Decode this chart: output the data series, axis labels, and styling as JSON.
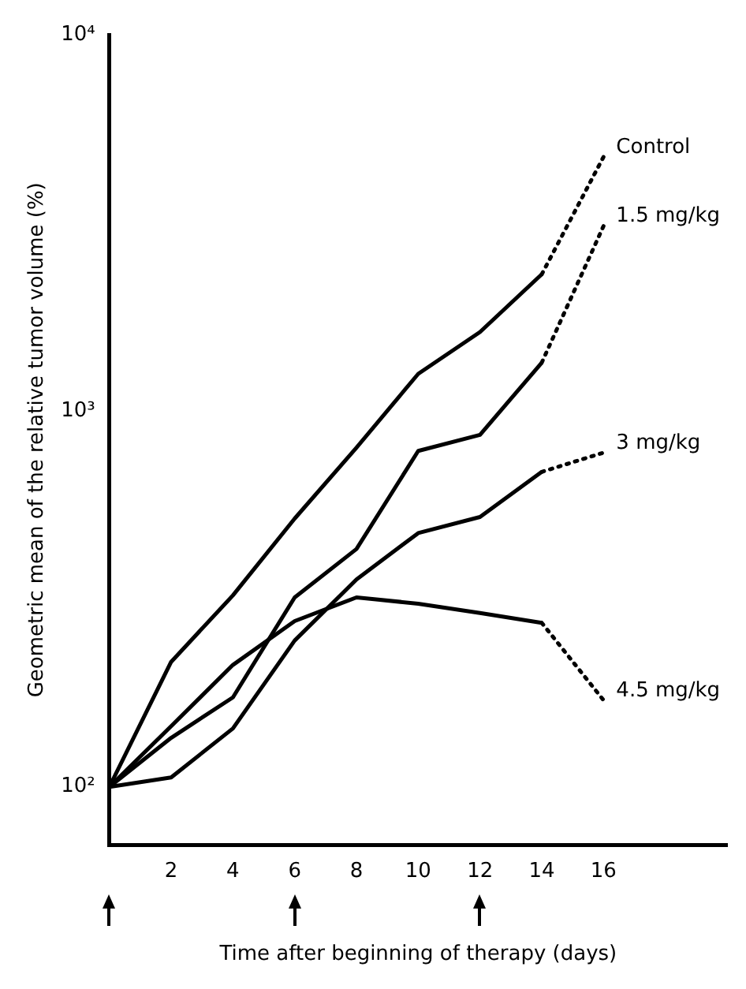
{
  "chart_data": {
    "type": "line",
    "xlabel": "Time after beginning of therapy (days)",
    "ylabel": "Geometric mean of the relative tumor volume (%)",
    "xlim": [
      0,
      20
    ],
    "xticks": [
      2,
      4,
      6,
      8,
      10,
      12,
      14,
      16
    ],
    "ylim": [
      70,
      10000
    ],
    "yticks": [
      {
        "value": 100,
        "label": "10²"
      },
      {
        "value": 1000,
        "label": "10³"
      },
      {
        "value": 10000,
        "label": "10⁴"
      }
    ],
    "log": "y",
    "grid": false,
    "legend": false,
    "marker": "none",
    "series": [
      {
        "name": "Control",
        "color": "#000000",
        "line_style": "solid",
        "x": [
          0,
          2,
          4,
          6,
          8,
          10,
          12,
          14
        ],
        "values": [
          100,
          215,
          323,
          517,
          798,
          1254,
          1620,
          2307
        ]
      },
      {
        "color": "#000000",
        "line_style": "dotted",
        "x": [
          14,
          16
        ],
        "values": [
          2307,
          4733
        ]
      },
      {
        "name": "1.5 mg/kg",
        "color": "#000000",
        "line_style": "solid",
        "x": [
          0,
          2,
          4,
          6,
          8,
          10,
          12,
          14
        ],
        "values": [
          100,
          135,
          173,
          319,
          429,
          782,
          863,
          1343
        ]
      },
      {
        "color": "#000000",
        "line_style": "dotted",
        "x": [
          14,
          16
        ],
        "values": [
          1343,
          3100
        ]
      },
      {
        "name": "3 mg/kg",
        "color": "#000000",
        "line_style": "solid",
        "x": [
          0,
          2,
          4,
          6,
          8,
          10,
          12,
          14
        ],
        "values": [
          100,
          106,
          143,
          245,
          356,
          473,
          522,
          688
        ]
      },
      {
        "color": "#000000",
        "line_style": "dotted",
        "x": [
          14,
          16
        ],
        "values": [
          688,
          774
        ]
      },
      {
        "name": "4.5 mg/kg",
        "color": "#000000",
        "line_style": "solid",
        "x": [
          0,
          2,
          4,
          6,
          8,
          10,
          12,
          14
        ],
        "values": [
          100,
          145,
          211,
          276,
          319,
          307,
          290,
          273
        ]
      },
      {
        "color": "#000000",
        "line_style": "dotted",
        "x": [
          14,
          16
        ],
        "values": [
          273,
          170
        ]
      }
    ]
  }
}
